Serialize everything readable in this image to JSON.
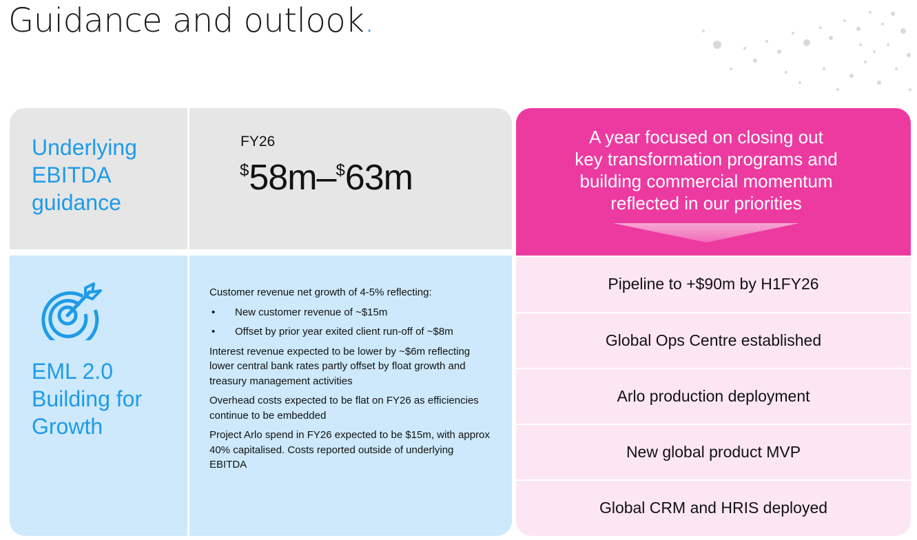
{
  "title": "Guidance and outlook",
  "title_dot": ".",
  "ebitda": {
    "label_line1": "Underlying",
    "label_line2": "EBITDA",
    "label_line3": "guidance",
    "period": "FY26",
    "currency": "$",
    "low": "58m",
    "dash": "–",
    "high": "63m"
  },
  "eml": {
    "icon": "target-icon",
    "heading": "EML 2.0",
    "sub_line1": "Building for",
    "sub_line2": "Growth"
  },
  "notes": {
    "intro": "Customer revenue net growth of 4-5% reflecting:",
    "bullet_char": "•",
    "bullets": [
      "New customer revenue of ~$15m",
      "Offset by prior year exited client run-off of ~$8m"
    ],
    "para1": "Interest revenue expected to be lower by ~$6m reflecting lower central bank rates partly offset by float growth and treasury management activities",
    "para2": "Overhead costs expected to be flat on FY26 as efficiencies continue to be embedded",
    "para3": "Project Arlo spend in FY26 expected to be $15m, with approx 40% capitalised. Costs reported outside of underlying EBITDA"
  },
  "focus": {
    "line1": "A year focused on closing out",
    "line2": "key transformation programs and",
    "line3": "building commercial momentum",
    "line4": "reflected in our priorities"
  },
  "priorities": [
    "Pipeline to +$90m by H1FY26",
    "Global Ops Centre established",
    "Arlo production deployment",
    "New global product MVP",
    "Global CRM and HRIS deployed"
  ],
  "colors": {
    "accent_blue": "#1e9be8",
    "pink": "#ec3aa0",
    "light_pink": "#fde6f4",
    "light_blue": "#cde9fb",
    "grey": "#e6e6e6"
  }
}
